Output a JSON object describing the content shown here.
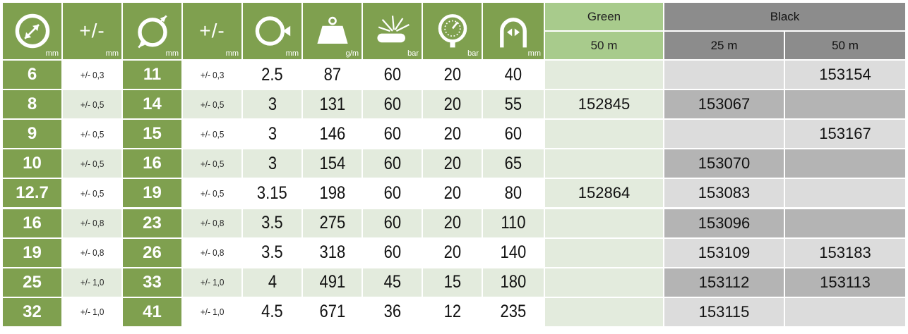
{
  "header": {
    "cols": [
      {
        "kind": "icon",
        "icon": "inner-diameter-icon",
        "unit": "mm"
      },
      {
        "kind": "text",
        "text": "+/-",
        "unit": "mm"
      },
      {
        "kind": "icon",
        "icon": "outer-diameter-icon",
        "unit": "mm"
      },
      {
        "kind": "text",
        "text": "+/-",
        "unit": "mm"
      },
      {
        "kind": "icon",
        "icon": "wall-thickness-icon",
        "unit": "mm"
      },
      {
        "kind": "icon",
        "icon": "weight-icon",
        "unit": "g/m"
      },
      {
        "kind": "icon",
        "icon": "burst-pressure-icon",
        "unit": "bar"
      },
      {
        "kind": "icon",
        "icon": "pressure-gauge-icon",
        "unit": "bar"
      },
      {
        "kind": "icon",
        "icon": "bend-radius-icon",
        "unit": "mm"
      }
    ],
    "green_label": "Green",
    "black_label": "Black",
    "green_sub": "50 m",
    "black_sub_1": "25 m",
    "black_sub_2": "50 m"
  },
  "rows": [
    {
      "id": "6",
      "tol1": "+/- 0,3",
      "od": "11",
      "tol2": "+/- 0,3",
      "wall": "2.5",
      "weight": "87",
      "burst": "60",
      "work": "20",
      "bend": "40",
      "green50": "",
      "black25": "",
      "black50": "153154"
    },
    {
      "id": "8",
      "tol1": "+/- 0,5",
      "od": "14",
      "tol2": "+/- 0,5",
      "wall": "3",
      "weight": "131",
      "burst": "60",
      "work": "20",
      "bend": "55",
      "green50": "152845",
      "black25": "153067",
      "black50": ""
    },
    {
      "id": "9",
      "tol1": "+/- 0,5",
      "od": "15",
      "tol2": "+/- 0,5",
      "wall": "3",
      "weight": "146",
      "burst": "60",
      "work": "20",
      "bend": "60",
      "green50": "",
      "black25": "",
      "black50": "153167"
    },
    {
      "id": "10",
      "tol1": "+/- 0,5",
      "od": "16",
      "tol2": "+/- 0,5",
      "wall": "3",
      "weight": "154",
      "burst": "60",
      "work": "20",
      "bend": "65",
      "green50": "",
      "black25": "153070",
      "black50": ""
    },
    {
      "id": "12.7",
      "tol1": "+/- 0,5",
      "od": "19",
      "tol2": "+/- 0,5",
      "wall": "3.15",
      "weight": "198",
      "burst": "60",
      "work": "20",
      "bend": "80",
      "green50": "152864",
      "black25": "153083",
      "black50": ""
    },
    {
      "id": "16",
      "tol1": "+/- 0,8",
      "od": "23",
      "tol2": "+/- 0,8",
      "wall": "3.5",
      "weight": "275",
      "burst": "60",
      "work": "20",
      "bend": "110",
      "green50": "",
      "black25": "153096",
      "black50": ""
    },
    {
      "id": "19",
      "tol1": "+/- 0,8",
      "od": "26",
      "tol2": "+/- 0,8",
      "wall": "3.5",
      "weight": "318",
      "burst": "60",
      "work": "20",
      "bend": "140",
      "green50": "",
      "black25": "153109",
      "black50": "153183"
    },
    {
      "id": "25",
      "tol1": "+/- 1,0",
      "od": "33",
      "tol2": "+/- 1,0",
      "wall": "4",
      "weight": "491",
      "burst": "45",
      "work": "15",
      "bend": "180",
      "green50": "",
      "black25": "153112",
      "black50": "153113"
    },
    {
      "id": "32",
      "tol1": "+/- 1,0",
      "od": "41",
      "tol2": "+/- 1,0",
      "wall": "4.5",
      "weight": "671",
      "burst": "36",
      "work": "12",
      "bend": "235",
      "green50": "",
      "black25": "153115",
      "black50": ""
    }
  ],
  "colors": {
    "header_green": "#7fa04f",
    "group_green": "#a8cb8c",
    "group_black": "#8c8c8c",
    "row_alt_green": "#e3ebdd",
    "light_grey": "#dcdcdc",
    "mid_grey": "#b4b4b4"
  }
}
